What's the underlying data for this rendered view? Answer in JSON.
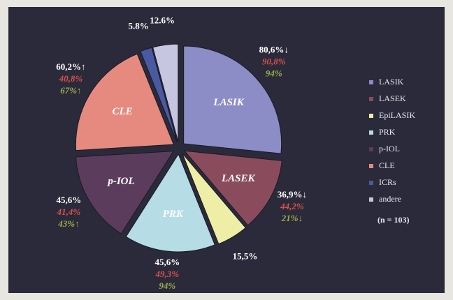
{
  "chart_data": {
    "type": "pie",
    "categories": [
      "LASIK",
      "LASEK",
      "EpiLASIK",
      "PRK",
      "p-IOL",
      "CLE",
      "ICRs",
      "andere"
    ],
    "values": [
      80.6,
      36.9,
      15.5,
      45.6,
      45.6,
      60.2,
      5.8,
      12.6
    ],
    "value_labels": [
      "80,6%↓",
      "36,9%↓",
      "15,5%",
      "45,6%",
      "45,6%",
      "60,2%↑",
      "5.8%",
      "12.6%"
    ],
    "second_labels": [
      "90,8%",
      "44,2%",
      null,
      "49,3%",
      "41,4%",
      "40,8%",
      null,
      null
    ],
    "third_labels": [
      "94%",
      "21%↓",
      null,
      "94%",
      "43%↑",
      "67%↑",
      null,
      null
    ],
    "colors": [
      "#8c8cc6",
      "#8a4c5c",
      "#eeeea6",
      "#b6dce6",
      "#5c3c5c",
      "#e68a80",
      "#4a5aa2",
      "#c6c6e0"
    ],
    "note": "(n = 103)"
  }
}
